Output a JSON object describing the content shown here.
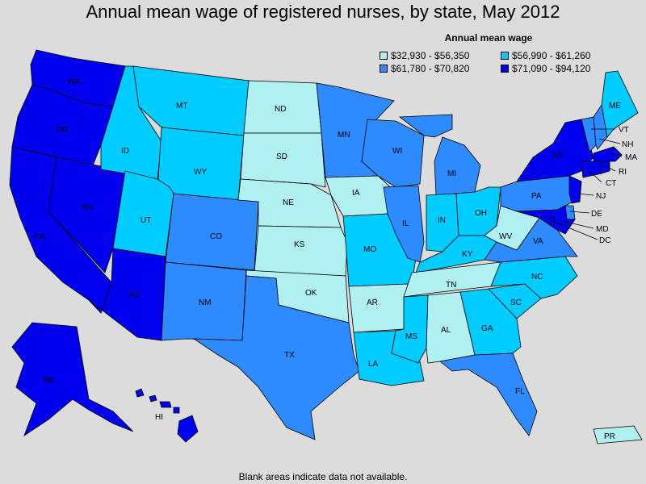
{
  "title": "Annual mean wage of registered nurses, by state, May 2012",
  "legend": {
    "title": "Annual mean wage",
    "bins": [
      {
        "label": "$32,930 - $56,350",
        "color": "#b0f0f0"
      },
      {
        "label": "$56,990 - $61,260",
        "color": "#00ccff"
      },
      {
        "label": "$61,780 - $70,820",
        "color": "#2e8bff"
      },
      {
        "label": "$71,090 - $94,120",
        "color": "#0000ee"
      }
    ]
  },
  "states": [
    {
      "code": "WA",
      "bin": 3
    },
    {
      "code": "OR",
      "bin": 3
    },
    {
      "code": "CA",
      "bin": 3
    },
    {
      "code": "NV",
      "bin": 3
    },
    {
      "code": "AZ",
      "bin": 3
    },
    {
      "code": "AK",
      "bin": 3
    },
    {
      "code": "HI",
      "bin": 3
    },
    {
      "code": "NY",
      "bin": 3
    },
    {
      "code": "MA",
      "bin": 3
    },
    {
      "code": "CT",
      "bin": 3
    },
    {
      "code": "RI",
      "bin": 3
    },
    {
      "code": "NJ",
      "bin": 3
    },
    {
      "code": "MD",
      "bin": 3
    },
    {
      "code": "DC",
      "bin": 3
    },
    {
      "code": "ID",
      "bin": 1
    },
    {
      "code": "MT",
      "bin": 1
    },
    {
      "code": "WY",
      "bin": 1
    },
    {
      "code": "UT",
      "bin": 1
    },
    {
      "code": "MO",
      "bin": 1
    },
    {
      "code": "IN",
      "bin": 1
    },
    {
      "code": "OH",
      "bin": 1
    },
    {
      "code": "KY",
      "bin": 1
    },
    {
      "code": "MS",
      "bin": 1
    },
    {
      "code": "LA",
      "bin": 1
    },
    {
      "code": "GA",
      "bin": 1
    },
    {
      "code": "SC",
      "bin": 1
    },
    {
      "code": "NC",
      "bin": 1
    },
    {
      "code": "ME",
      "bin": 1
    },
    {
      "code": "CO",
      "bin": 2
    },
    {
      "code": "NM",
      "bin": 2
    },
    {
      "code": "TX",
      "bin": 2
    },
    {
      "code": "MN",
      "bin": 2
    },
    {
      "code": "WI",
      "bin": 2
    },
    {
      "code": "MI",
      "bin": 2
    },
    {
      "code": "IL",
      "bin": 2
    },
    {
      "code": "PA",
      "bin": 2
    },
    {
      "code": "VA",
      "bin": 2
    },
    {
      "code": "FL",
      "bin": 2
    },
    {
      "code": "VT",
      "bin": 2
    },
    {
      "code": "NH",
      "bin": 2
    },
    {
      "code": "DE",
      "bin": 2
    },
    {
      "code": "ND",
      "bin": 0
    },
    {
      "code": "SD",
      "bin": 0
    },
    {
      "code": "NE",
      "bin": 0
    },
    {
      "code": "KS",
      "bin": 0
    },
    {
      "code": "OK",
      "bin": 0
    },
    {
      "code": "IA",
      "bin": 0
    },
    {
      "code": "AR",
      "bin": 0
    },
    {
      "code": "TN",
      "bin": 0
    },
    {
      "code": "AL",
      "bin": 0
    },
    {
      "code": "WV",
      "bin": 0
    },
    {
      "code": "PR",
      "bin": 0
    }
  ],
  "footnote": "Blank areas indicate data not available."
}
